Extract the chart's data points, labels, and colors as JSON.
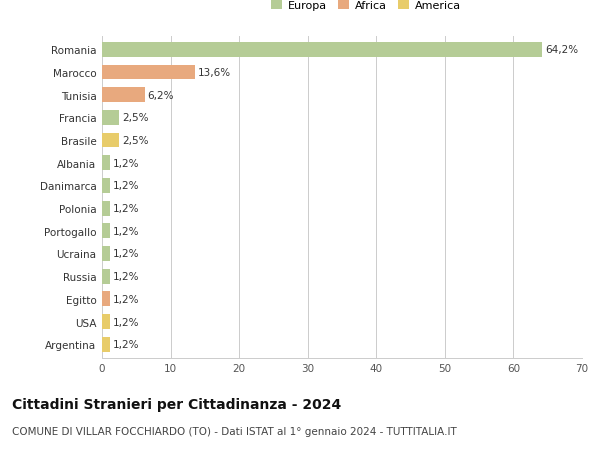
{
  "categories": [
    "Romania",
    "Marocco",
    "Tunisia",
    "Francia",
    "Brasile",
    "Albania",
    "Danimarca",
    "Polonia",
    "Portogallo",
    "Ucraina",
    "Russia",
    "Egitto",
    "USA",
    "Argentina"
  ],
  "values": [
    64.2,
    13.6,
    6.2,
    2.5,
    2.5,
    1.2,
    1.2,
    1.2,
    1.2,
    1.2,
    1.2,
    1.2,
    1.2,
    1.2
  ],
  "labels": [
    "64,2%",
    "13,6%",
    "6,2%",
    "2,5%",
    "2,5%",
    "1,2%",
    "1,2%",
    "1,2%",
    "1,2%",
    "1,2%",
    "1,2%",
    "1,2%",
    "1,2%",
    "1,2%"
  ],
  "colors": [
    "#b5cc96",
    "#e8a97e",
    "#e8a97e",
    "#b5cc96",
    "#e8cc6a",
    "#b5cc96",
    "#b5cc96",
    "#b5cc96",
    "#b5cc96",
    "#b5cc96",
    "#b5cc96",
    "#e8a97e",
    "#e8cc6a",
    "#e8cc6a"
  ],
  "legend_labels": [
    "Europa",
    "Africa",
    "America"
  ],
  "legend_colors": [
    "#b5cc96",
    "#e8a97e",
    "#e8cc6a"
  ],
  "title": "Cittadini Stranieri per Cittadinanza - 2024",
  "subtitle": "COMUNE DI VILLAR FOCCHIARDO (TO) - Dati ISTAT al 1° gennaio 2024 - TUTTITALIA.IT",
  "xlim": [
    0,
    70
  ],
  "xticks": [
    0,
    10,
    20,
    30,
    40,
    50,
    60,
    70
  ],
  "bg_color": "#ffffff",
  "grid_color": "#cccccc",
  "bar_height": 0.65,
  "label_fontsize": 7.5,
  "tick_fontsize": 7.5,
  "title_fontsize": 10,
  "subtitle_fontsize": 7.5
}
